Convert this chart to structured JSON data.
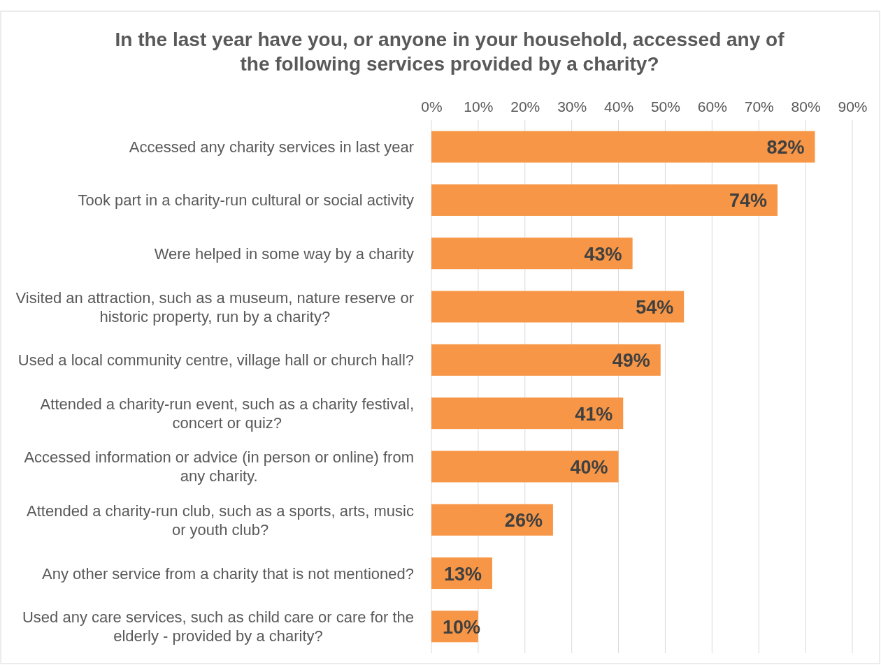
{
  "chart_data": {
    "type": "bar",
    "orientation": "horizontal",
    "title": "In the last year have you, or anyone in your household, accessed any of the following services provided by a charity?",
    "categories": [
      "Accessed any charity services in last year",
      "Took part in a charity-run cultural or social activity",
      "Were helped in some way by a charity",
      "Visited an attraction, such as a museum, nature reserve or historic property, run by a charity?",
      "Used a local community centre, village hall or church hall?",
      "Attended a charity-run event, such as a charity festival, concert or quiz?",
      "Accessed information or advice (in person or online) from any charity.",
      "Attended a charity-run club, such as a sports, arts, music or youth club?",
      "Any other service from a charity that is not mentioned?",
      "Used any care services, such as child care or care for the elderly - provided by a charity?"
    ],
    "values": [
      82,
      74,
      43,
      54,
      49,
      41,
      40,
      26,
      13,
      10
    ],
    "value_labels": [
      "82%",
      "74%",
      "43%",
      "54%",
      "49%",
      "41%",
      "40%",
      "26%",
      "13%",
      "10%"
    ],
    "color": "#f79646",
    "xlim": [
      0,
      90
    ],
    "xticks": [
      {
        "value": 0,
        "label": "0%"
      },
      {
        "value": 10,
        "label": "10%"
      },
      {
        "value": 20,
        "label": "20%"
      },
      {
        "value": 30,
        "label": "30%"
      },
      {
        "value": 40,
        "label": "40%"
      },
      {
        "value": 50,
        "label": "50%"
      },
      {
        "value": 60,
        "label": "60%"
      },
      {
        "value": 70,
        "label": "70%"
      },
      {
        "value": 80,
        "label": "80%"
      },
      {
        "value": 90,
        "label": "90%"
      }
    ],
    "grid": "x"
  }
}
